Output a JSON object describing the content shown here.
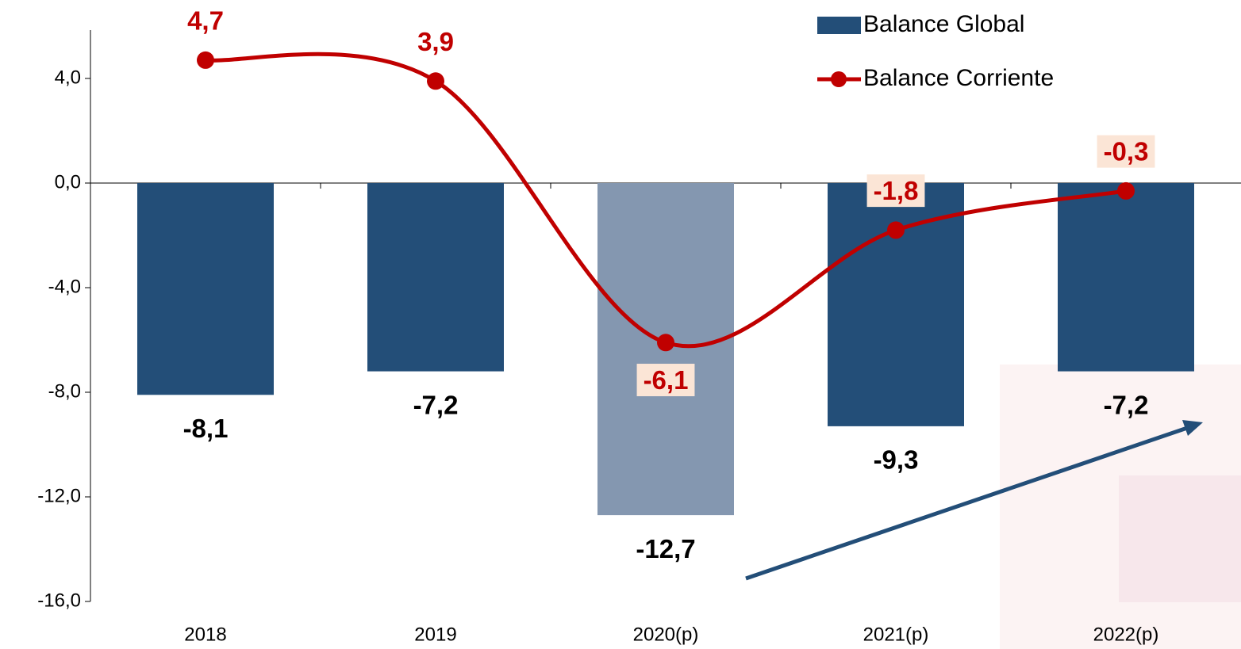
{
  "chart_data": {
    "type": "bar_line",
    "categories": [
      "2018",
      "2019",
      "2020(p)",
      "2021(p)",
      "2022(p)"
    ],
    "series": [
      {
        "name": "Balance Global",
        "type": "bar",
        "color": "#234e78",
        "colors": [
          "#234e78",
          "#234e78",
          "#8497b0",
          "#234e78",
          "#234e78"
        ],
        "values": [
          -8.1,
          -7.2,
          -12.7,
          -9.3,
          -7.2
        ],
        "value_labels": [
          "-8,1",
          "-7,2",
          "-12,7",
          "-9,3",
          "-7,2"
        ]
      },
      {
        "name": "Balance Corriente",
        "type": "line",
        "color": "#c00000",
        "values": [
          4.7,
          3.9,
          -6.1,
          -1.8,
          -0.3
        ],
        "value_labels": [
          "4,7",
          "3,9",
          "-6,1",
          "-1,8",
          "-0,3"
        ]
      }
    ],
    "ylim": [
      -16,
      6
    ],
    "yticks": [
      {
        "value": -16,
        "label": "-16,0"
      },
      {
        "value": -12,
        "label": "-12,0"
      },
      {
        "value": -8,
        "label": "-8,0"
      },
      {
        "value": -4,
        "label": "-4,0"
      },
      {
        "value": 0,
        "label": "0,0"
      },
      {
        "value": 4,
        "label": "4,0"
      }
    ],
    "legend": "top-right"
  }
}
